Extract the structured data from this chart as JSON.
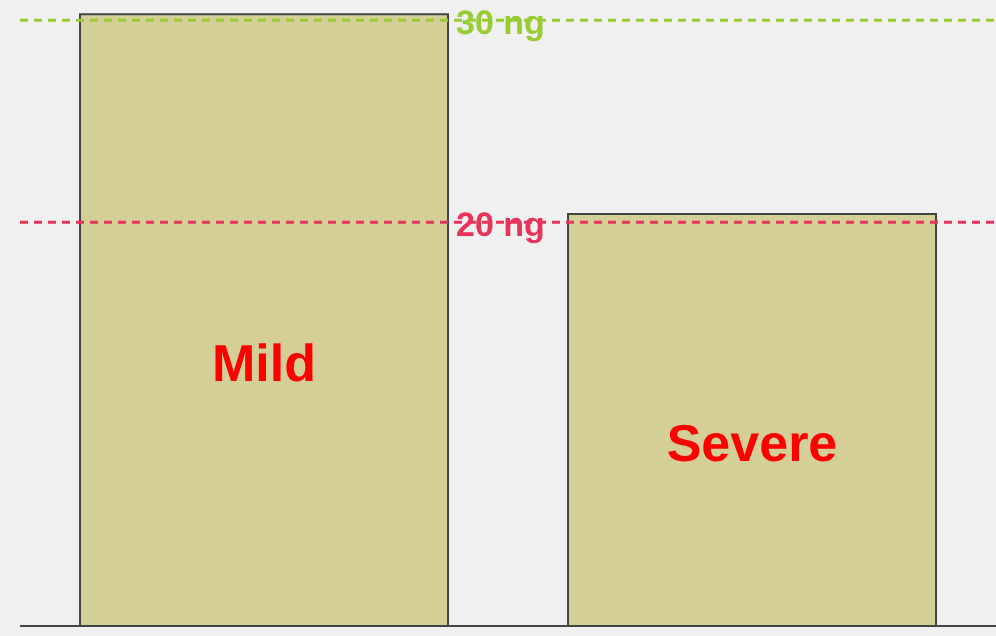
{
  "chart_data": {
    "type": "bar",
    "categories": [
      "Mild",
      "Severe"
    ],
    "values": [
      30.3,
      20.4
    ],
    "color": "#d3cf96",
    "ylim": [
      0,
      31
    ],
    "ref_lines": [
      {
        "axis": "y",
        "value": 30,
        "label": "30 ng",
        "color": "#99cc33",
        "line_style": "dashed"
      },
      {
        "axis": "y",
        "value": 20,
        "label": "20 ng",
        "color": "#e8335a",
        "line_style": "dashed"
      }
    ]
  }
}
